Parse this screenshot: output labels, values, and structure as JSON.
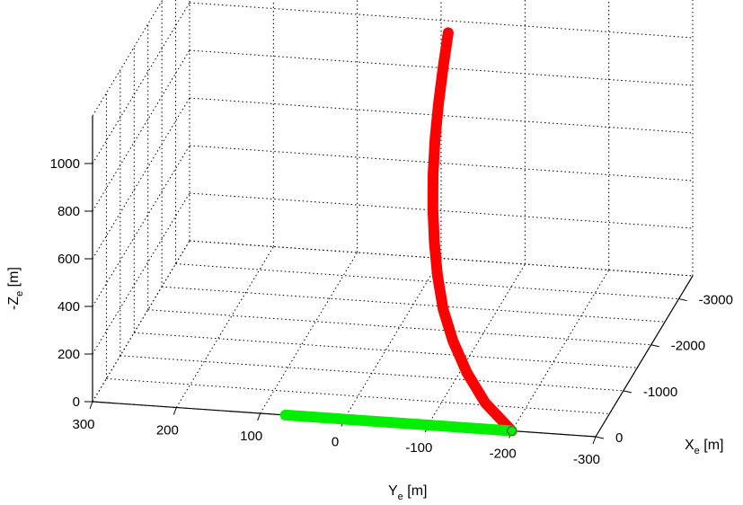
{
  "chart_data": {
    "type": "line",
    "subtype": "3d-trajectory",
    "grid": true,
    "xlabel": {
      "main": "X",
      "sub": "e",
      "unit": " [m]"
    },
    "ylabel": {
      "main": "Y",
      "sub": "e",
      "unit": " [m]"
    },
    "zlabel": {
      "main": "-Z",
      "sub": "e",
      "unit": " [m]"
    },
    "x_ticks": [
      "0",
      "-1000",
      "-2000",
      "-3000"
    ],
    "y_ticks": [
      "300",
      "200",
      "100",
      "0",
      "-100",
      "-200",
      "-300"
    ],
    "z_ticks": [
      "0",
      "200",
      "400",
      "600",
      "800",
      "1000"
    ],
    "xlim": [
      0,
      -3500
    ],
    "ylim": [
      300,
      -300
    ],
    "zlim": [
      0,
      1200
    ],
    "series": [
      {
        "color": "#ff0000",
        "x": [
          0,
          -250,
          -500,
          -750,
          -1000,
          -1250,
          -1500,
          -1750,
          -2000,
          -2250,
          -2500,
          -2750,
          -3000
        ],
        "y": [
          -200,
          -160,
          -130,
          -105,
          -85,
          -70,
          -58,
          -48,
          -40,
          -34,
          -30,
          -27,
          -25
        ],
        "z": [
          0,
          60,
          130,
          210,
          290,
          380,
          470,
          560,
          650,
          750,
          850,
          950,
          1050
        ]
      },
      {
        "color": "#00ee00",
        "x": [
          0,
          0,
          0
        ],
        "y": [
          -200,
          -60,
          70
        ],
        "z": [
          0,
          0,
          0
        ]
      }
    ]
  }
}
